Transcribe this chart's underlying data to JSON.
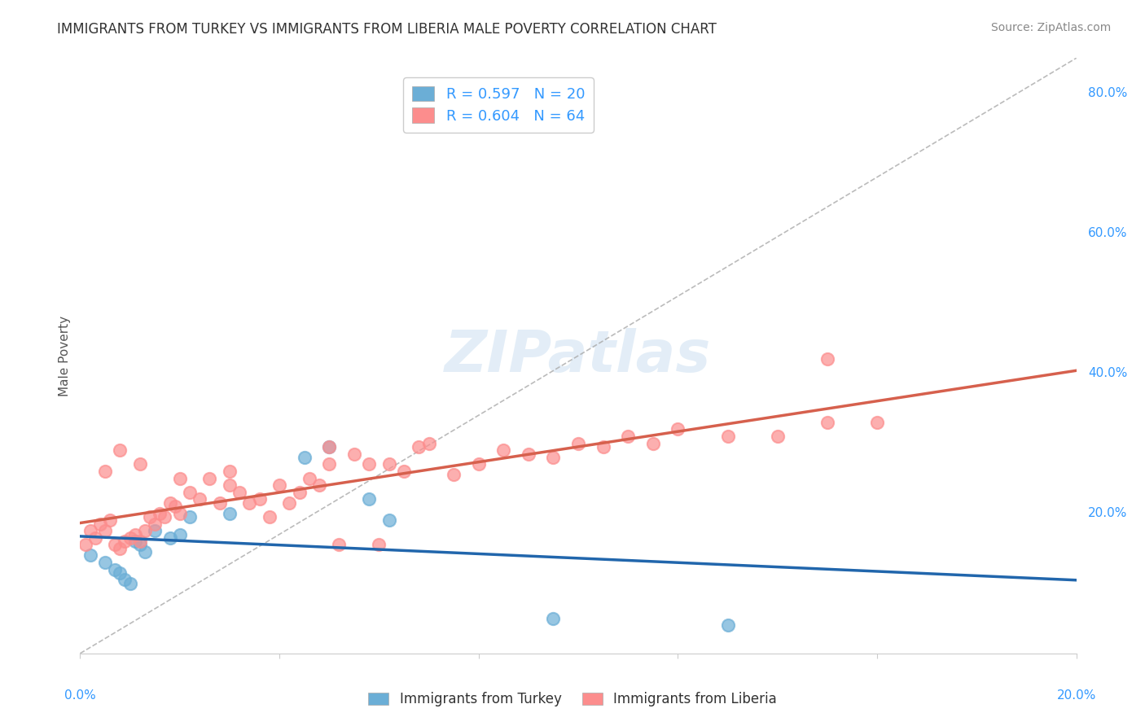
{
  "title": "IMMIGRANTS FROM TURKEY VS IMMIGRANTS FROM LIBERIA MALE POVERTY CORRELATION CHART",
  "source": "Source: ZipAtlas.com",
  "ylabel": "Male Poverty",
  "xlim": [
    0.0,
    0.2
  ],
  "ylim": [
    0.0,
    0.85
  ],
  "right_yticks": [
    0.2,
    0.4,
    0.6,
    0.8
  ],
  "right_yticklabels": [
    "20.0%",
    "40.0%",
    "60.0%",
    "80.0%"
  ],
  "turkey_color": "#6baed6",
  "turkey_color_line": "#2166ac",
  "liberia_color": "#fc8d8d",
  "liberia_color_line": "#d6604d",
  "turkey_R": 0.597,
  "turkey_N": 20,
  "liberia_R": 0.604,
  "liberia_N": 64,
  "turkey_x": [
    0.002,
    0.005,
    0.007,
    0.008,
    0.009,
    0.01,
    0.011,
    0.012,
    0.013,
    0.015,
    0.018,
    0.02,
    0.022,
    0.03,
    0.045,
    0.05,
    0.058,
    0.062,
    0.095,
    0.13
  ],
  "turkey_y": [
    0.14,
    0.13,
    0.12,
    0.115,
    0.105,
    0.1,
    0.16,
    0.155,
    0.145,
    0.175,
    0.165,
    0.17,
    0.195,
    0.2,
    0.28,
    0.295,
    0.22,
    0.19,
    0.05,
    0.04
  ],
  "liberia_x": [
    0.001,
    0.002,
    0.003,
    0.004,
    0.005,
    0.006,
    0.007,
    0.008,
    0.009,
    0.01,
    0.011,
    0.012,
    0.013,
    0.014,
    0.015,
    0.016,
    0.017,
    0.018,
    0.019,
    0.02,
    0.022,
    0.024,
    0.026,
    0.028,
    0.03,
    0.032,
    0.034,
    0.036,
    0.038,
    0.04,
    0.042,
    0.044,
    0.046,
    0.048,
    0.05,
    0.052,
    0.055,
    0.058,
    0.06,
    0.062,
    0.065,
    0.068,
    0.07,
    0.075,
    0.08,
    0.085,
    0.09,
    0.095,
    0.1,
    0.105,
    0.11,
    0.115,
    0.12,
    0.13,
    0.14,
    0.15,
    0.16,
    0.005,
    0.008,
    0.012,
    0.02,
    0.03,
    0.05,
    0.15
  ],
  "liberia_y": [
    0.155,
    0.175,
    0.165,
    0.185,
    0.175,
    0.19,
    0.155,
    0.15,
    0.16,
    0.165,
    0.17,
    0.16,
    0.175,
    0.195,
    0.185,
    0.2,
    0.195,
    0.215,
    0.21,
    0.2,
    0.23,
    0.22,
    0.25,
    0.215,
    0.24,
    0.23,
    0.215,
    0.22,
    0.195,
    0.24,
    0.215,
    0.23,
    0.25,
    0.24,
    0.27,
    0.155,
    0.285,
    0.27,
    0.155,
    0.27,
    0.26,
    0.295,
    0.3,
    0.255,
    0.27,
    0.29,
    0.285,
    0.28,
    0.3,
    0.295,
    0.31,
    0.3,
    0.32,
    0.31,
    0.31,
    0.33,
    0.33,
    0.26,
    0.29,
    0.27,
    0.25,
    0.26,
    0.295,
    0.42
  ],
  "watermark": "ZIPatlas",
  "background_color": "#ffffff",
  "grid_color": "#d0d0d0"
}
